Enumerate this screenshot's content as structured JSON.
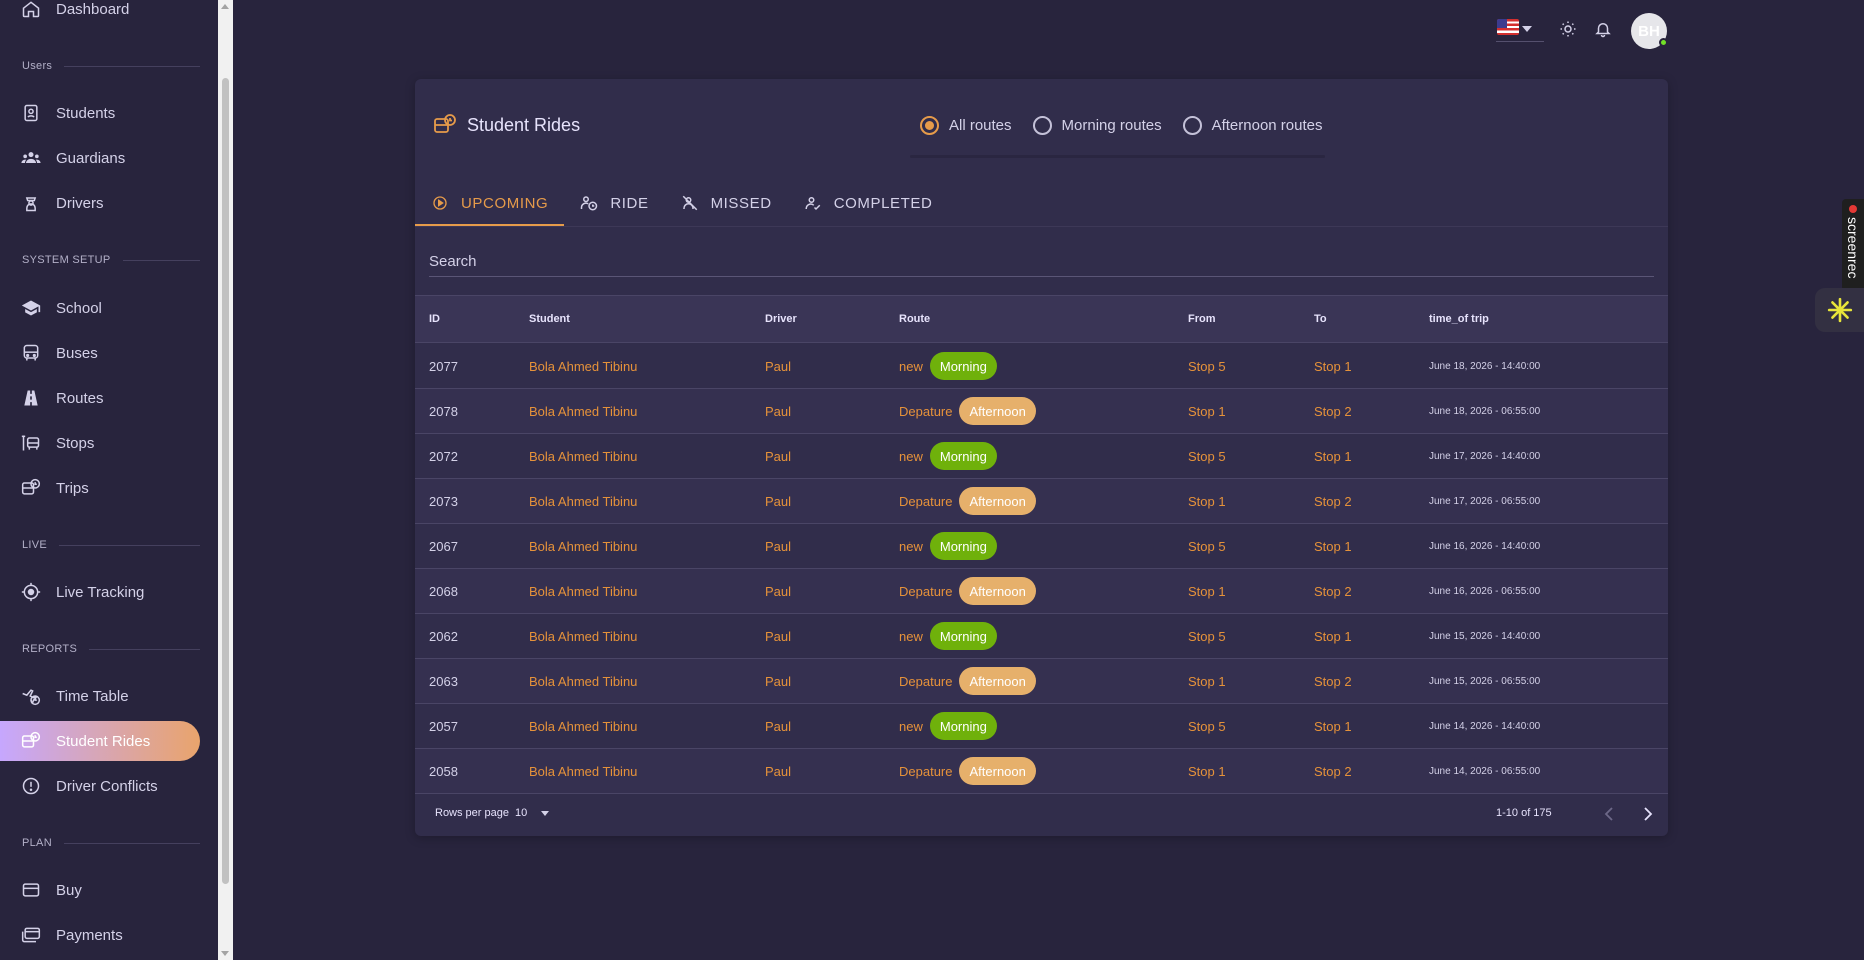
{
  "sidebar": {
    "top_item": "Dashboard",
    "sections": {
      "users": "Users",
      "system_setup": "SYSTEM SETUP",
      "live": "LIVE",
      "reports": "REPORTS",
      "plan": "PLAN"
    },
    "items": {
      "students": "Students",
      "guardians": "Guardians",
      "drivers": "Drivers",
      "school": "School",
      "buses": "Buses",
      "routes": "Routes",
      "stops": "Stops",
      "trips": "Trips",
      "live_tracking": "Live Tracking",
      "time_table": "Time Table",
      "student_rides": "Student Rides",
      "driver_conflicts": "Driver Conflicts",
      "buy": "Buy",
      "payments": "Payments"
    },
    "active_item": "student_rides"
  },
  "topbar": {
    "avatar_initials": "BH"
  },
  "page": {
    "title": "Student Rides",
    "route_filters": [
      "All routes",
      "Morning routes",
      "Afternoon routes"
    ],
    "selected_filter": "All routes",
    "tabs": [
      "UPCOMING",
      "RIDE",
      "MISSED",
      "COMPLETED"
    ],
    "active_tab": "UPCOMING",
    "search_placeholder": "Search"
  },
  "table": {
    "headers": [
      "ID",
      "Student",
      "Driver",
      "Route",
      "From",
      "To",
      "time_of trip"
    ],
    "rows": [
      {
        "id": "2077",
        "student": "Bola Ahmed Tibinu",
        "driver": "Paul",
        "route": "new",
        "tag": "Morning",
        "from": "Stop 5",
        "to": "Stop 1",
        "time": "June 18, 2026 - 14:40:00"
      },
      {
        "id": "2078",
        "student": "Bola Ahmed Tibinu",
        "driver": "Paul",
        "route": "Depature",
        "tag": "Afternoon",
        "from": "Stop 1",
        "to": "Stop 2",
        "time": "June 18, 2026 - 06:55:00"
      },
      {
        "id": "2072",
        "student": "Bola Ahmed Tibinu",
        "driver": "Paul",
        "route": "new",
        "tag": "Morning",
        "from": "Stop 5",
        "to": "Stop 1",
        "time": "June 17, 2026 - 14:40:00"
      },
      {
        "id": "2073",
        "student": "Bola Ahmed Tibinu",
        "driver": "Paul",
        "route": "Depature",
        "tag": "Afternoon",
        "from": "Stop 1",
        "to": "Stop 2",
        "time": "June 17, 2026 - 06:55:00"
      },
      {
        "id": "2067",
        "student": "Bola Ahmed Tibinu",
        "driver": "Paul",
        "route": "new",
        "tag": "Morning",
        "from": "Stop 5",
        "to": "Stop 1",
        "time": "June 16, 2026 - 14:40:00"
      },
      {
        "id": "2068",
        "student": "Bola Ahmed Tibinu",
        "driver": "Paul",
        "route": "Depature",
        "tag": "Afternoon",
        "from": "Stop 1",
        "to": "Stop 2",
        "time": "June 16, 2026 - 06:55:00"
      },
      {
        "id": "2062",
        "student": "Bola Ahmed Tibinu",
        "driver": "Paul",
        "route": "new",
        "tag": "Morning",
        "from": "Stop 5",
        "to": "Stop 1",
        "time": "June 15, 2026 - 14:40:00"
      },
      {
        "id": "2063",
        "student": "Bola Ahmed Tibinu",
        "driver": "Paul",
        "route": "Depature",
        "tag": "Afternoon",
        "from": "Stop 1",
        "to": "Stop 2",
        "time": "June 15, 2026 - 06:55:00"
      },
      {
        "id": "2057",
        "student": "Bola Ahmed Tibinu",
        "driver": "Paul",
        "route": "new",
        "tag": "Morning",
        "from": "Stop 5",
        "to": "Stop 1",
        "time": "June 14, 2026 - 14:40:00"
      },
      {
        "id": "2058",
        "student": "Bola Ahmed Tibinu",
        "driver": "Paul",
        "route": "Depature",
        "tag": "Afternoon",
        "from": "Stop 1",
        "to": "Stop 2",
        "time": "June 14, 2026 - 06:55:00"
      }
    ]
  },
  "pagination": {
    "rows_per_page_label": "Rows per page",
    "rows_per_page": "10",
    "range": "1-10 of 175"
  },
  "overlay": {
    "screenrec_label": "screenrec"
  },
  "colors": {
    "accent": "#e69b4a",
    "morning_chip": "#6fb10b",
    "afternoon_chip": "#e6b06b",
    "background": "#28243d",
    "card": "#312d4b"
  }
}
